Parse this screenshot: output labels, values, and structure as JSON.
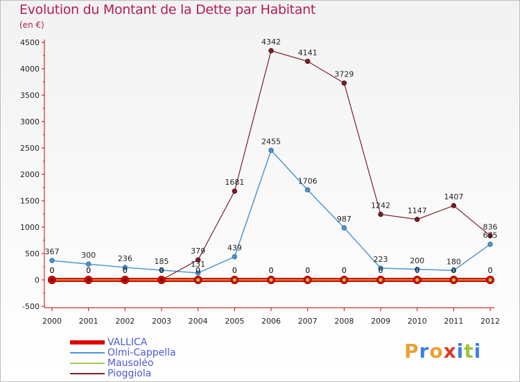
{
  "title": "Evolution du Montant de la Dette par Habitant",
  "subtitle": "(en €)",
  "brand": {
    "text": "Proxiti",
    "colors": [
      "#e8a135",
      "#3f7fd9",
      "#e8a135",
      "#d83b2d",
      "#3f7fd9",
      "#9bc43c",
      "#3f7fd9"
    ]
  },
  "chart_data": {
    "type": "line",
    "x": [
      2000,
      2001,
      2002,
      2003,
      2004,
      2005,
      2006,
      2007,
      2008,
      2009,
      2010,
      2011,
      2012
    ],
    "ylim": [
      -500,
      4500
    ],
    "yticks": [
      -500,
      0,
      500,
      1000,
      1500,
      2000,
      2500,
      3000,
      3500,
      4000,
      4500
    ],
    "grid": false,
    "legend_position": "bottom-left",
    "series": [
      {
        "name": "VALLICA",
        "color": "#e00000",
        "values": [
          0,
          0,
          0,
          0,
          0,
          0,
          0,
          0,
          0,
          0,
          0,
          0,
          0
        ]
      },
      {
        "name": "Olmi-Cappella",
        "color": "#4f95d0",
        "values": [
          367,
          300,
          236,
          185,
          131,
          439,
          2455,
          1706,
          987,
          223,
          200,
          180,
          675
        ]
      },
      {
        "name": "Mausoléo",
        "color": "#9ccc4a",
        "values": [
          0,
          0,
          0,
          0,
          0,
          0,
          0,
          0,
          0,
          0,
          0,
          0,
          0
        ]
      },
      {
        "name": "Pioggiola",
        "color": "#7a1f27",
        "values": [
          0,
          0,
          0,
          0,
          379,
          1681,
          4342,
          4141,
          3729,
          1242,
          1147,
          1407,
          836
        ]
      }
    ]
  }
}
